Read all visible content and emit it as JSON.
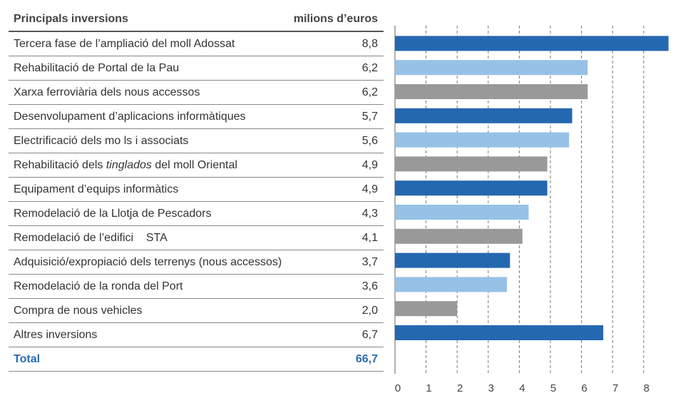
{
  "table": {
    "header_label": "Principals inversions",
    "header_unit": "milions d’euros",
    "rows": [
      {
        "label": "Tercera fase de l’ampliació del moll Adossat",
        "value": "8,8"
      },
      {
        "label": "Rehabilitació de Portal de la Pau",
        "value": "6,2"
      },
      {
        "label": "Xarxa ferroviària dels nous accessos",
        "value": "6,2"
      },
      {
        "label": "Desenvolupament d’aplicacions informàtiques",
        "value": "5,7"
      },
      {
        "label": "Electrificació dels mo ls i associats",
        "value": "5,6"
      },
      {
        "label_pre": "Rehabilitació dels ",
        "label_em": "tinglados",
        "label_post": " del moll Oriental",
        "value": "4,9"
      },
      {
        "label": "Equipament d’equips informàtics",
        "value": "4,9"
      },
      {
        "label": "Remodelació de la Llotja de Pescadors",
        "value": "4,3"
      },
      {
        "label": "Remodelació de l’edifici    STA",
        "value": "4,1"
      },
      {
        "label": "Adquisició/expropiació dels terrenys (nous accessos)",
        "value": "3,7"
      },
      {
        "label": "Remodelació de la ronda del Port",
        "value": "3,6"
      },
      {
        "label": "Compra de nous vehicles",
        "value": "2,0"
      },
      {
        "label": "Altres inversions",
        "value": "6,7"
      }
    ],
    "total_label": "Total",
    "total_value": "66,7"
  },
  "colors": {
    "dark_blue": "#2468b0",
    "light_blue": "#97c1e7",
    "gray": "#999999",
    "total_text": "#2b6cb0"
  },
  "chart_data": {
    "type": "bar",
    "orientation": "horizontal",
    "categories": [
      "Tercera fase de l’ampliació del moll Adossat",
      "Rehabilitació de Portal de la Pau",
      "Xarxa ferroviària dels nous accessos",
      "Desenvolupament d’aplicacions informàtiques",
      "Electrificació dels mo ls i associats",
      "Rehabilitació dels tinglados del moll Oriental",
      "Equipament d’equips informàtics",
      "Remodelació de la Llotja de Pescadors",
      "Remodelació de l’edifici    STA",
      "Adquisició/expropiació dels terrenys (nous accessos)",
      "Remodelació de la ronda del Port",
      "Compra de nous vehicles",
      "Altres inversions"
    ],
    "values": [
      8.8,
      6.2,
      6.2,
      5.7,
      5.6,
      4.9,
      4.9,
      4.3,
      4.1,
      3.7,
      3.6,
      2.0,
      6.7
    ],
    "bar_colors": [
      "dark_blue",
      "light_blue",
      "gray",
      "dark_blue",
      "light_blue",
      "gray",
      "dark_blue",
      "light_blue",
      "gray",
      "dark_blue",
      "light_blue",
      "gray",
      "dark_blue"
    ],
    "xlim": [
      0,
      8.8
    ],
    "xticks": [
      0,
      1,
      2,
      3,
      4,
      5,
      6,
      7,
      8
    ],
    "xlabel": "",
    "ylabel": "",
    "grid": "vertical-dashed"
  }
}
